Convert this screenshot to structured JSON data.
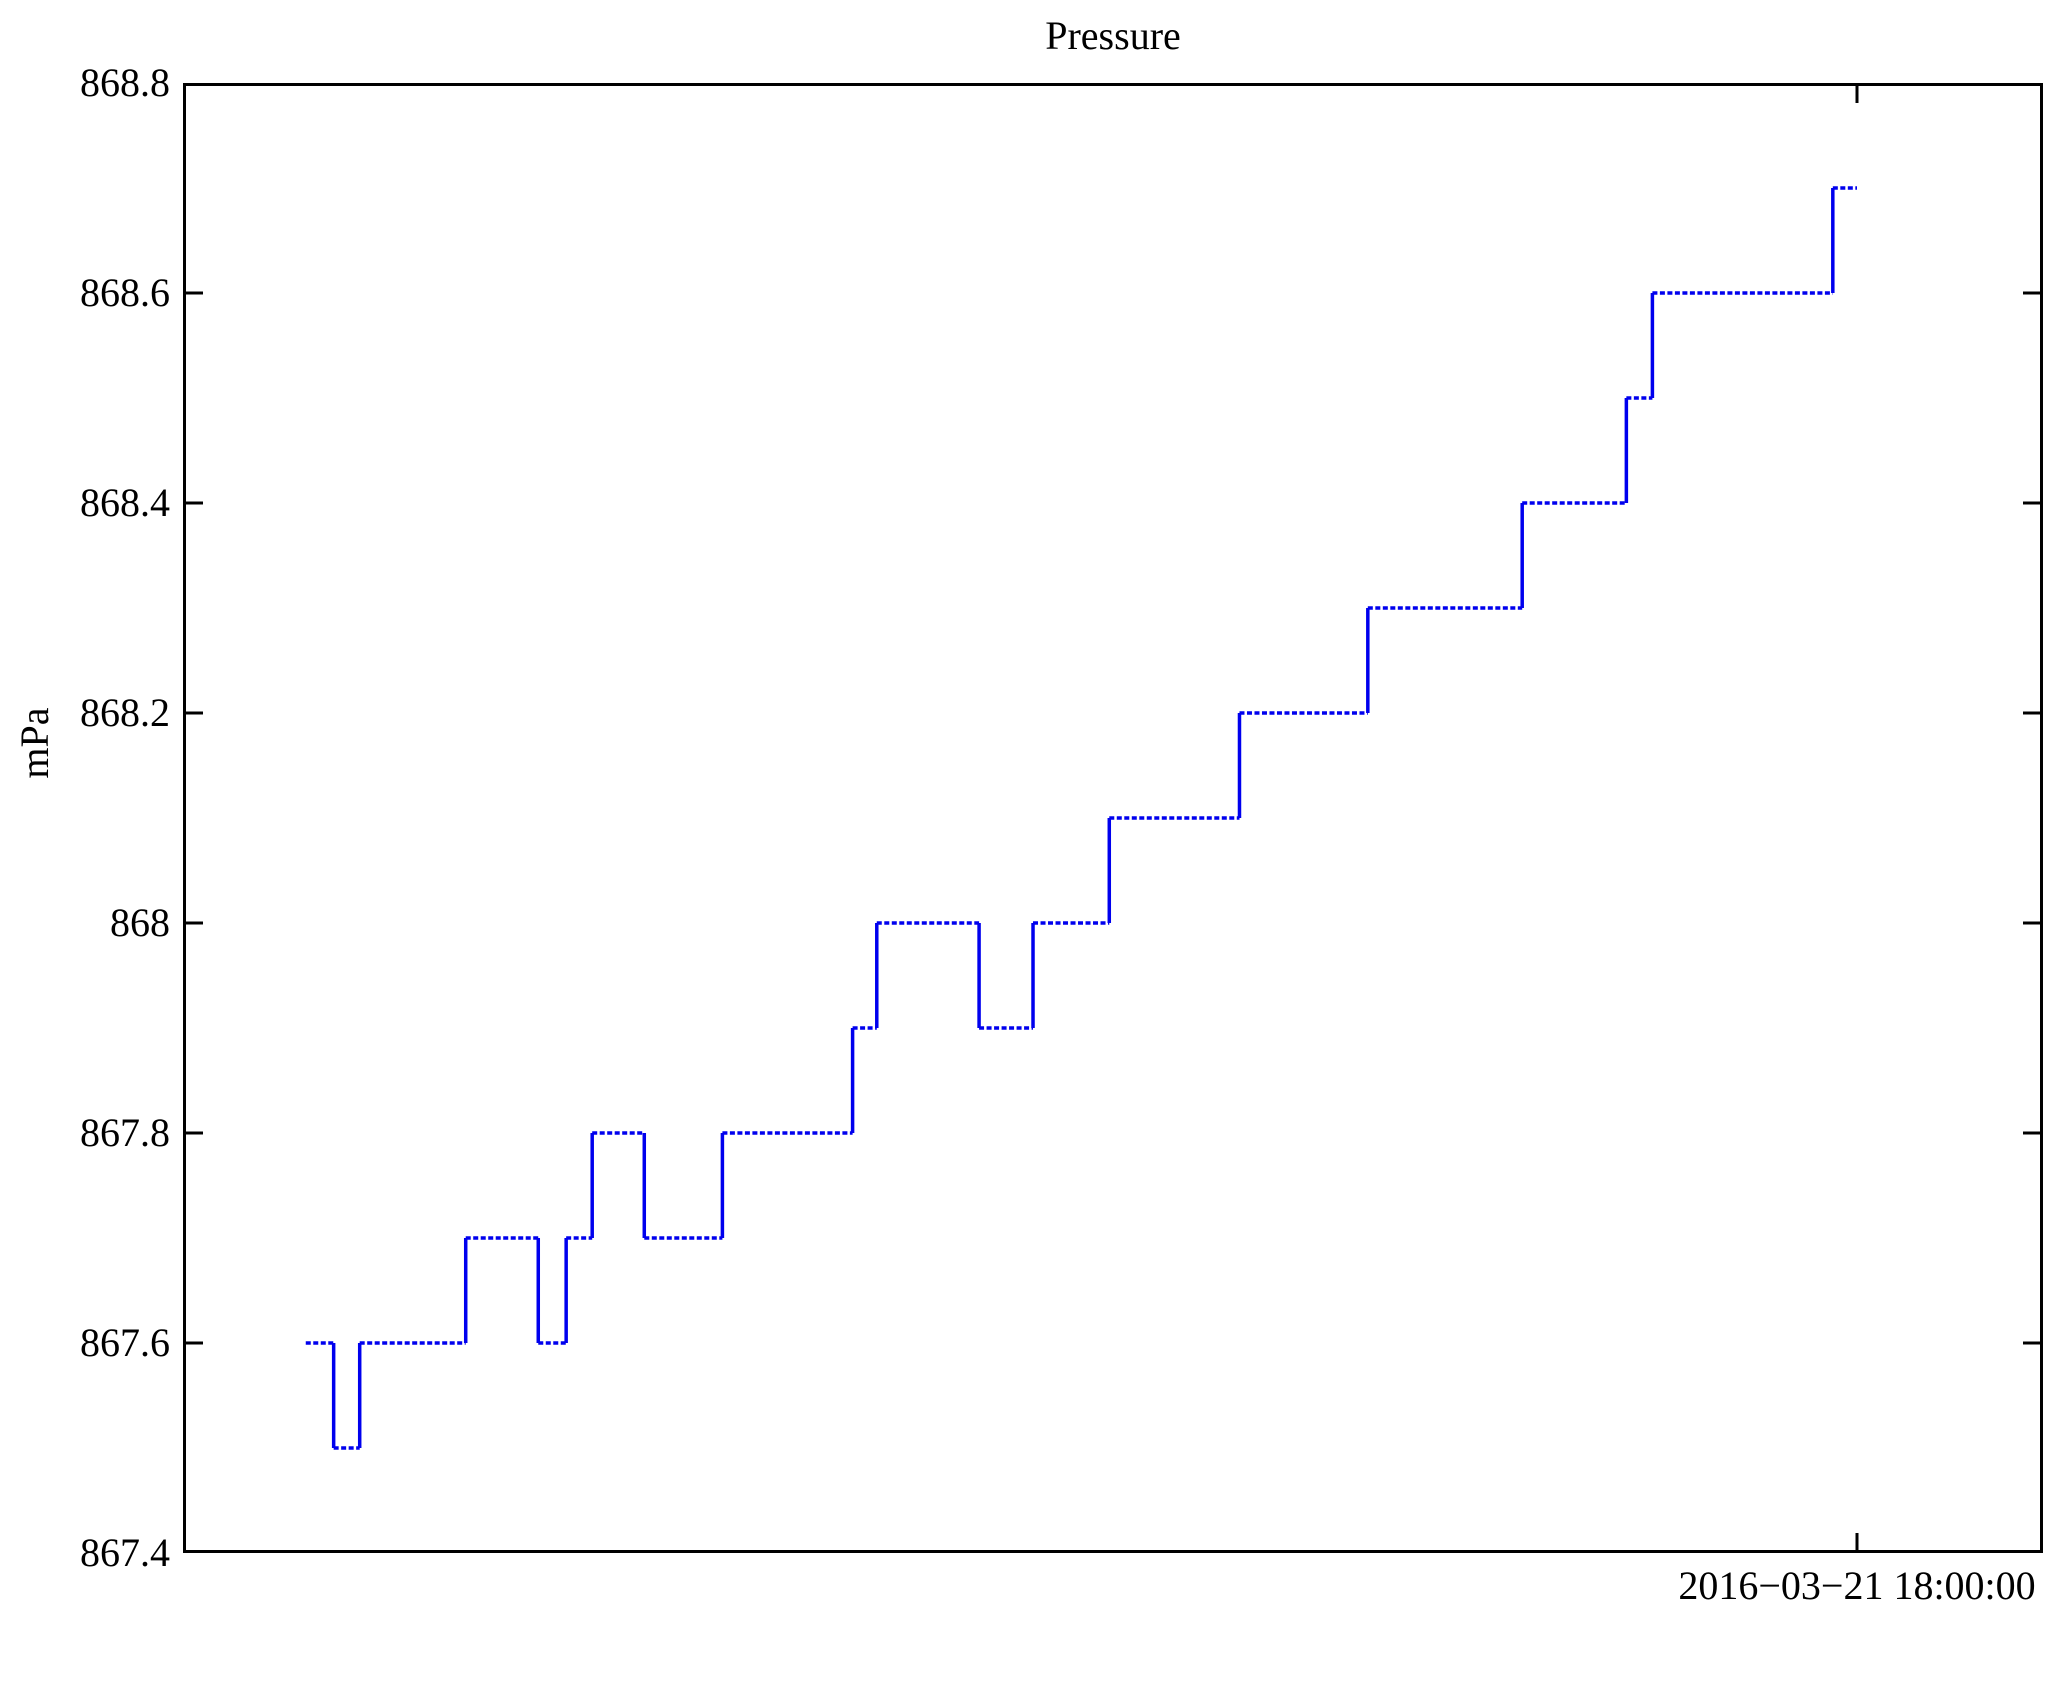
{
  "page": {
    "background": "#ffffff"
  },
  "chart_data": {
    "type": "line",
    "subtype": "step",
    "title": "Pressure",
    "xlabel": "",
    "ylabel": "mPa",
    "ylim": [
      867.4,
      868.8
    ],
    "yticks": [
      {
        "value": 868.8,
        "label": "868.8"
      },
      {
        "value": 868.6,
        "label": "868.6"
      },
      {
        "value": 868.4,
        "label": "868.4"
      },
      {
        "value": 868.2,
        "label": "868.2"
      },
      {
        "value": 868.0,
        "label": "868"
      },
      {
        "value": 867.8,
        "label": "867.8"
      },
      {
        "value": 867.6,
        "label": "867.6"
      },
      {
        "value": 867.4,
        "label": "867.4"
      }
    ],
    "x_axis": {
      "tick_label": "2016−03−21 18:00:00",
      "tick_position_fraction": 0.9
    },
    "grid": false,
    "legend": false,
    "line_color": "#0000ee",
    "axis_color": "#000000",
    "series": [
      {
        "name": "Pressure",
        "unit": "mPa",
        "x_is_fraction_of_plot_width": true,
        "x_end": 0.9,
        "points": [
          {
            "x": 0.066,
            "y": 867.6
          },
          {
            "x": 0.081,
            "y": 867.5
          },
          {
            "x": 0.095,
            "y": 867.6
          },
          {
            "x": 0.152,
            "y": 867.7
          },
          {
            "x": 0.191,
            "y": 867.6
          },
          {
            "x": 0.206,
            "y": 867.7
          },
          {
            "x": 0.22,
            "y": 867.8
          },
          {
            "x": 0.248,
            "y": 867.7
          },
          {
            "x": 0.29,
            "y": 867.8
          },
          {
            "x": 0.36,
            "y": 867.9
          },
          {
            "x": 0.373,
            "y": 868.0
          },
          {
            "x": 0.428,
            "y": 867.9
          },
          {
            "x": 0.457,
            "y": 868.0
          },
          {
            "x": 0.498,
            "y": 868.1
          },
          {
            "x": 0.568,
            "y": 868.2
          },
          {
            "x": 0.637,
            "y": 868.3
          },
          {
            "x": 0.72,
            "y": 868.4
          },
          {
            "x": 0.776,
            "y": 868.5
          },
          {
            "x": 0.79,
            "y": 868.6
          },
          {
            "x": 0.887,
            "y": 868.7
          }
        ]
      }
    ]
  }
}
